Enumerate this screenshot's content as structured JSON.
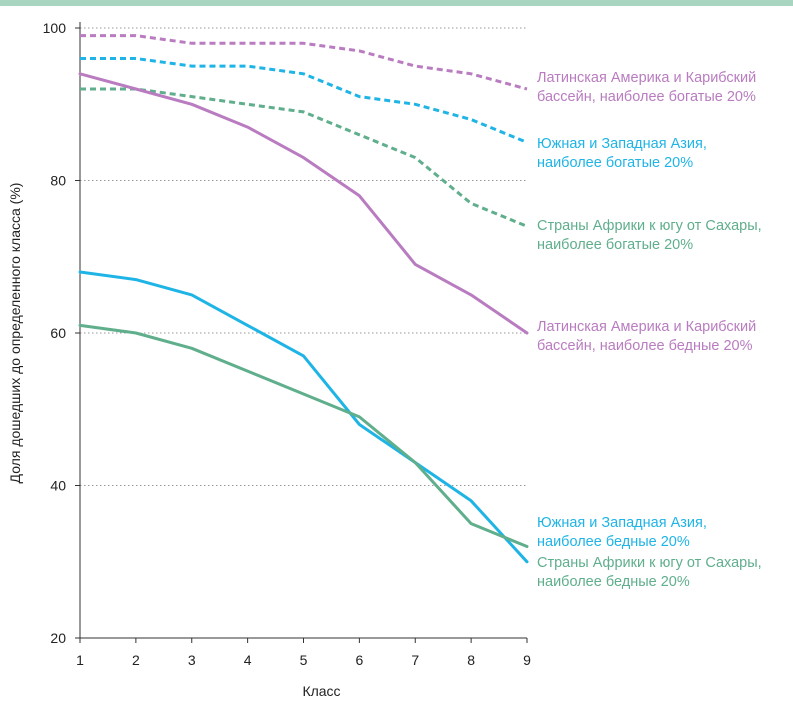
{
  "chart_data": {
    "type": "line",
    "xlabel": "Класс",
    "ylabel": "Доля дошедших до определенного класса (%)",
    "ylim": [
      20,
      100
    ],
    "x": [
      1,
      2,
      3,
      4,
      5,
      6,
      7,
      8,
      9
    ],
    "yticks": [
      20,
      40,
      60,
      80,
      100
    ],
    "grid": "horizontal-dotted",
    "series": [
      {
        "name": "Латинская Америка и Карибский бассейн, наиболее богатые 20%",
        "label_lines": [
          "Латинская Америка и Карибский",
          "бассейн, наиболее богатые 20%"
        ],
        "color": "#b97cc0",
        "style": "dashed",
        "values": [
          99,
          99,
          98,
          98,
          98,
          97,
          95,
          94,
          92
        ]
      },
      {
        "name": "Южная и Западная Азия, наиболее богатые 20%",
        "label_lines": [
          "Южная и Западная Азия,",
          "наиболее богатые 20%"
        ],
        "color": "#1fb4e6",
        "style": "dashed",
        "values": [
          96,
          96,
          95,
          95,
          94,
          91,
          90,
          88,
          85
        ]
      },
      {
        "name": "Страны Африки к югу от Сахары, наиболее богатые 20%",
        "label_lines": [
          "Страны Африки к югу от Сахары,",
          "наиболее богатые 20%"
        ],
        "color": "#5fae8c",
        "style": "dashed",
        "values": [
          92,
          92,
          91,
          90,
          89,
          86,
          83,
          77,
          74
        ]
      },
      {
        "name": "Латинская Америка и Карибский бассейн, наиболее бедные 20%",
        "label_lines": [
          "Латинская Америка и Карибский",
          "бассейн, наиболее бедные 20%"
        ],
        "color": "#b97cc0",
        "style": "solid",
        "values": [
          94,
          92,
          90,
          87,
          83,
          78,
          69,
          65,
          60
        ]
      },
      {
        "name": "Южная и Западная Азия, наиболее бедные 20%",
        "label_lines": [
          "Южная и Западная Азия,",
          "наиболее бедные 20%"
        ],
        "color": "#1fb4e6",
        "style": "solid",
        "values": [
          68,
          67,
          65,
          61,
          57,
          48,
          43,
          38,
          30
        ]
      },
      {
        "name": "Страны Африки к югу от Сахары, наиболее бедные 20%",
        "label_lines": [
          "Страны Африки к югу от Сахары,",
          "наиболее бедные 20%"
        ],
        "color": "#5fae8c",
        "style": "solid",
        "values": [
          61,
          60,
          58,
          55,
          52,
          49,
          43,
          35,
          32
        ]
      }
    ]
  }
}
